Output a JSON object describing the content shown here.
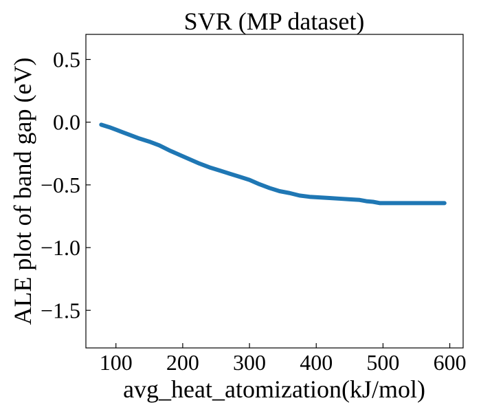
{
  "chart_data": {
    "type": "line",
    "title": "SVR (MP dataset)",
    "xlabel": "avg_heat_atomization(kJ/mol)",
    "ylabel": "ALE plot of band gap (eV)",
    "xlim": [
      55,
      620
    ],
    "ylim": [
      -1.8,
      0.7
    ],
    "xticks": [
      100,
      200,
      300,
      400,
      500,
      600
    ],
    "yticks": [
      0.5,
      0.0,
      -0.5,
      -1.0,
      -1.5
    ],
    "xtick_labels": [
      "100",
      "200",
      "300",
      "400",
      "500",
      "600"
    ],
    "ytick_labels": [
      "0.5",
      "0.0",
      "−0.5",
      "−1.0",
      "−1.5"
    ],
    "grid": false,
    "series": [
      {
        "color": "#1f77b4",
        "x": [
          78,
          90,
          100,
          110,
          120,
          135,
          150,
          165,
          180,
          195,
          210,
          225,
          240,
          255,
          270,
          285,
          300,
          315,
          330,
          345,
          360,
          375,
          390,
          405,
          420,
          435,
          450,
          465,
          475,
          485,
          495,
          505,
          520,
          540,
          560,
          580,
          592
        ],
        "y": [
          -0.02,
          -0.04,
          -0.06,
          -0.08,
          -0.1,
          -0.13,
          -0.155,
          -0.185,
          -0.225,
          -0.26,
          -0.295,
          -0.33,
          -0.36,
          -0.385,
          -0.41,
          -0.435,
          -0.46,
          -0.495,
          -0.525,
          -0.55,
          -0.565,
          -0.585,
          -0.595,
          -0.6,
          -0.605,
          -0.61,
          -0.615,
          -0.62,
          -0.63,
          -0.635,
          -0.645,
          -0.645,
          -0.645,
          -0.645,
          -0.645,
          -0.645,
          -0.645
        ]
      }
    ]
  }
}
